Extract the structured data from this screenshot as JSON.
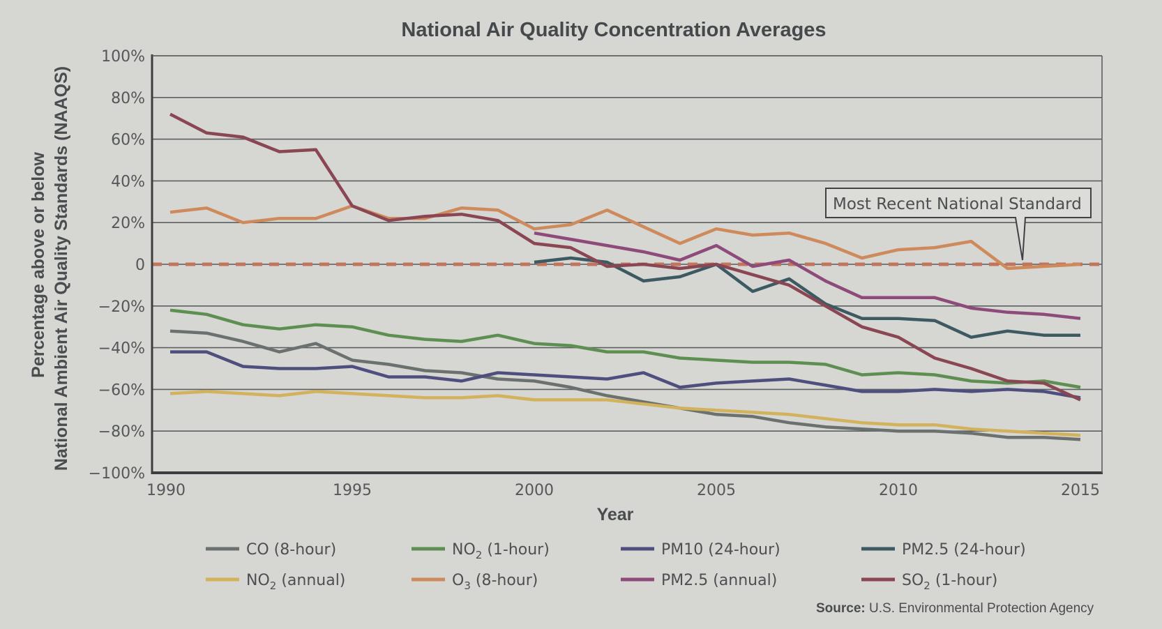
{
  "chart_data": {
    "type": "line",
    "title": "National Air Quality Concentration Averages",
    "xlabel": "Year",
    "ylabel_lines": [
      "Percentage above or below",
      "National Ambient Air Quality Standards (NAAQS)"
    ],
    "xlim": [
      1990,
      2015
    ],
    "ylim": [
      -100,
      100
    ],
    "x_ticks": [
      1990,
      1995,
      2000,
      2005,
      2010,
      2015
    ],
    "y_ticks": [
      {
        "value": 100,
        "label": "100%"
      },
      {
        "value": 80,
        "label": "80%"
      },
      {
        "value": 60,
        "label": "60%"
      },
      {
        "value": 40,
        "label": "40%"
      },
      {
        "value": 20,
        "label": "20%"
      },
      {
        "value": 0,
        "label": "0"
      },
      {
        "value": -20,
        "label": "−20%"
      },
      {
        "value": -40,
        "label": "−40%"
      },
      {
        "value": -60,
        "label": "−60%"
      },
      {
        "value": -80,
        "label": "−80%"
      },
      {
        "value": -100,
        "label": "−100%"
      }
    ],
    "grid": true,
    "reference_line": {
      "value": 0,
      "label": "Most Recent National Standard",
      "style": "dashed",
      "color": "#c2755e"
    },
    "legend_position": "bottom",
    "series": [
      {
        "name": "CO (8-hour)",
        "label_main": "CO (8-hour)",
        "color": "#6b716f",
        "start_year": 1990,
        "values": [
          -32,
          -33,
          -37,
          -42,
          -38,
          -46,
          -48,
          -51,
          -52,
          -55,
          -56,
          -59,
          -63,
          -66,
          -69,
          -72,
          -73,
          -76,
          -78,
          -79,
          -80,
          -80,
          -81,
          -83,
          -83,
          -84
        ]
      },
      {
        "name": "NO2 (1-hour)",
        "label_main": "NO",
        "label_sub": "2",
        "label_tail": " (1-hour)",
        "color": "#5e8f52",
        "start_year": 1990,
        "values": [
          -22,
          -24,
          -29,
          -31,
          -29,
          -30,
          -34,
          -36,
          -37,
          -34,
          -38,
          -39,
          -42,
          -42,
          -45,
          -46,
          -47,
          -47,
          -48,
          -53,
          -52,
          -53,
          -56,
          -57,
          -56,
          -59
        ]
      },
      {
        "name": "PM10 (24-hour)",
        "label_main": "PM10 (24-hour)",
        "color": "#4e4f7e",
        "start_year": 1990,
        "values": [
          -42,
          -42,
          -49,
          -50,
          -50,
          -49,
          -54,
          -54,
          -56,
          -52,
          -53,
          -54,
          -55,
          -52,
          -59,
          -57,
          -56,
          -55,
          -58,
          -61,
          -61,
          -60,
          -61,
          -60,
          -61,
          -64
        ]
      },
      {
        "name": "PM2.5 (24-hour)",
        "label_main": "PM2.5 (24-hour)",
        "color": "#3d5a63",
        "start_year": 2000,
        "values": [
          1,
          3,
          1,
          -8,
          -6,
          0,
          -13,
          -7,
          -19,
          -26,
          -26,
          -27,
          -35,
          -32,
          -34,
          -34
        ]
      },
      {
        "name": "NO2 (annual)",
        "label_main": "NO",
        "label_sub": "2",
        "label_tail": " (annual)",
        "color": "#d2b25c",
        "start_year": 1990,
        "values": [
          -62,
          -61,
          -62,
          -63,
          -61,
          -62,
          -63,
          -64,
          -64,
          -63,
          -65,
          -65,
          -65,
          -67,
          -69,
          -70,
          -71,
          -72,
          -74,
          -76,
          -77,
          -77,
          -79,
          -80,
          -81,
          -82
        ]
      },
      {
        "name": "O3 (8-hour)",
        "label_main": "O",
        "label_sub": "3",
        "label_tail": " (8-hour)",
        "color": "#cf8a5c",
        "start_year": 1990,
        "values": [
          25,
          27,
          20,
          22,
          22,
          28,
          22,
          22,
          27,
          26,
          17,
          19,
          26,
          18,
          10,
          17,
          14,
          15,
          10,
          3,
          7,
          8,
          11,
          -2,
          -1,
          0
        ]
      },
      {
        "name": "PM2.5 (annual)",
        "label_main": "PM2.5 (annual)",
        "color": "#8e4a7a",
        "start_year": 2000,
        "values": [
          15,
          12,
          9,
          6,
          2,
          9,
          -1,
          2,
          -8,
          -16,
          -16,
          -16,
          -21,
          -23,
          -24,
          -26
        ]
      },
      {
        "name": "SO2 (1-hour)",
        "label_main": "SO",
        "label_sub": "2",
        "label_tail": " (1-hour)",
        "color": "#8a4652",
        "start_year": 1990,
        "values": [
          72,
          63,
          61,
          54,
          55,
          28,
          21,
          23,
          24,
          21,
          10,
          8,
          -1,
          0,
          -2,
          0,
          -5,
          -10,
          -20,
          -30,
          -35,
          -45,
          -50,
          -56,
          -57,
          -65
        ]
      }
    ],
    "source_label": "Source:",
    "source_text": " U.S. Environmental Protection Agency"
  }
}
